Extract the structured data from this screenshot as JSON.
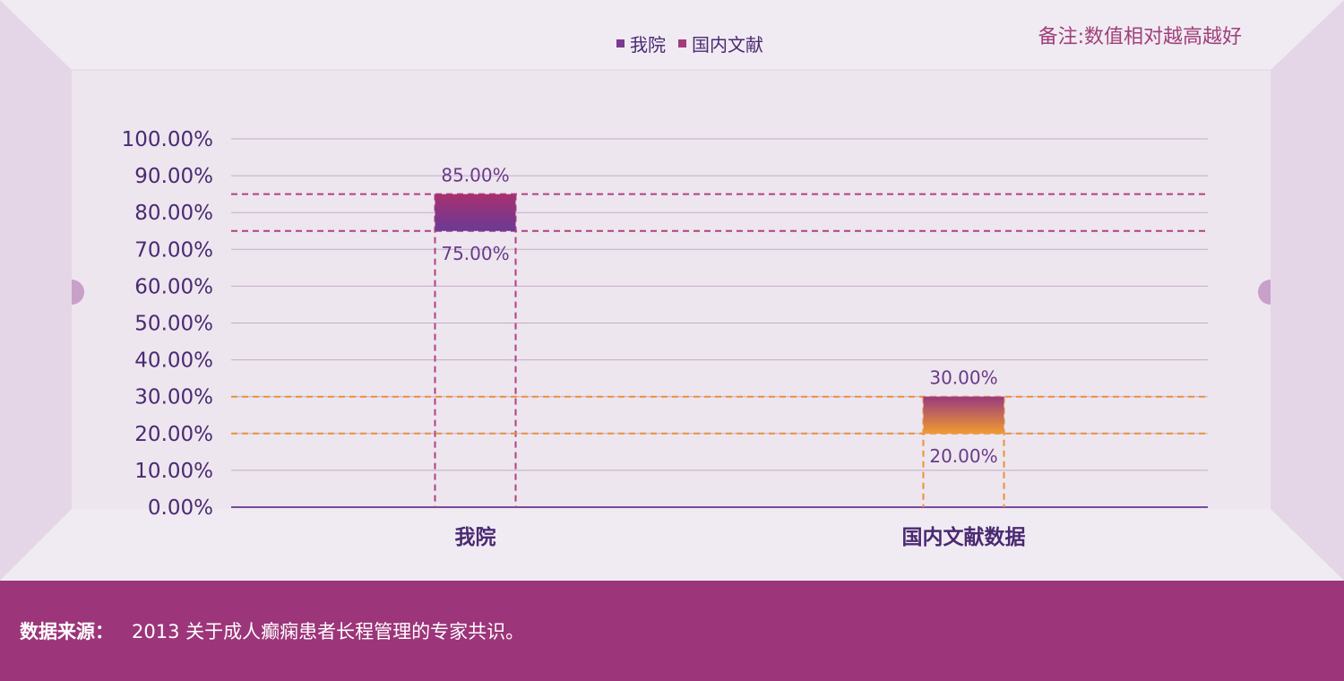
{
  "legend": {
    "items": [
      {
        "label": "我院",
        "color": "#7a3a90"
      },
      {
        "label": "国内文献",
        "color": "#a33a7c"
      }
    ]
  },
  "note": "备注:数值相对越高越好",
  "footer": {
    "label": "数据来源：",
    "text": "2013 关于成人癫痫患者长程管理的专家共识。"
  },
  "chart_data": {
    "type": "bar",
    "categories": [
      "我院",
      "国内文献数据"
    ],
    "series": [
      {
        "name": "我院",
        "range": [
          75,
          85
        ],
        "low_label": "75.00%",
        "high_label": "85.00%",
        "top_color": "#a8306e",
        "bottom_color": "#6a3a96",
        "guide_color": "#b04080"
      },
      {
        "name": "国内文献",
        "range": [
          20,
          30
        ],
        "low_label": "20.00%",
        "high_label": "30.00%",
        "top_color": "#9a3a7e",
        "bottom_color": "#f09a30",
        "guide_color": "#e8903a"
      }
    ],
    "ylim": [
      0,
      100
    ],
    "yticks": [
      "0.00%",
      "10.00%",
      "20.00%",
      "30.00%",
      "40.00%",
      "50.00%",
      "60.00%",
      "70.00%",
      "80.00%",
      "90.00%",
      "100.00%"
    ],
    "grid": true,
    "legend_position": "top-center"
  }
}
